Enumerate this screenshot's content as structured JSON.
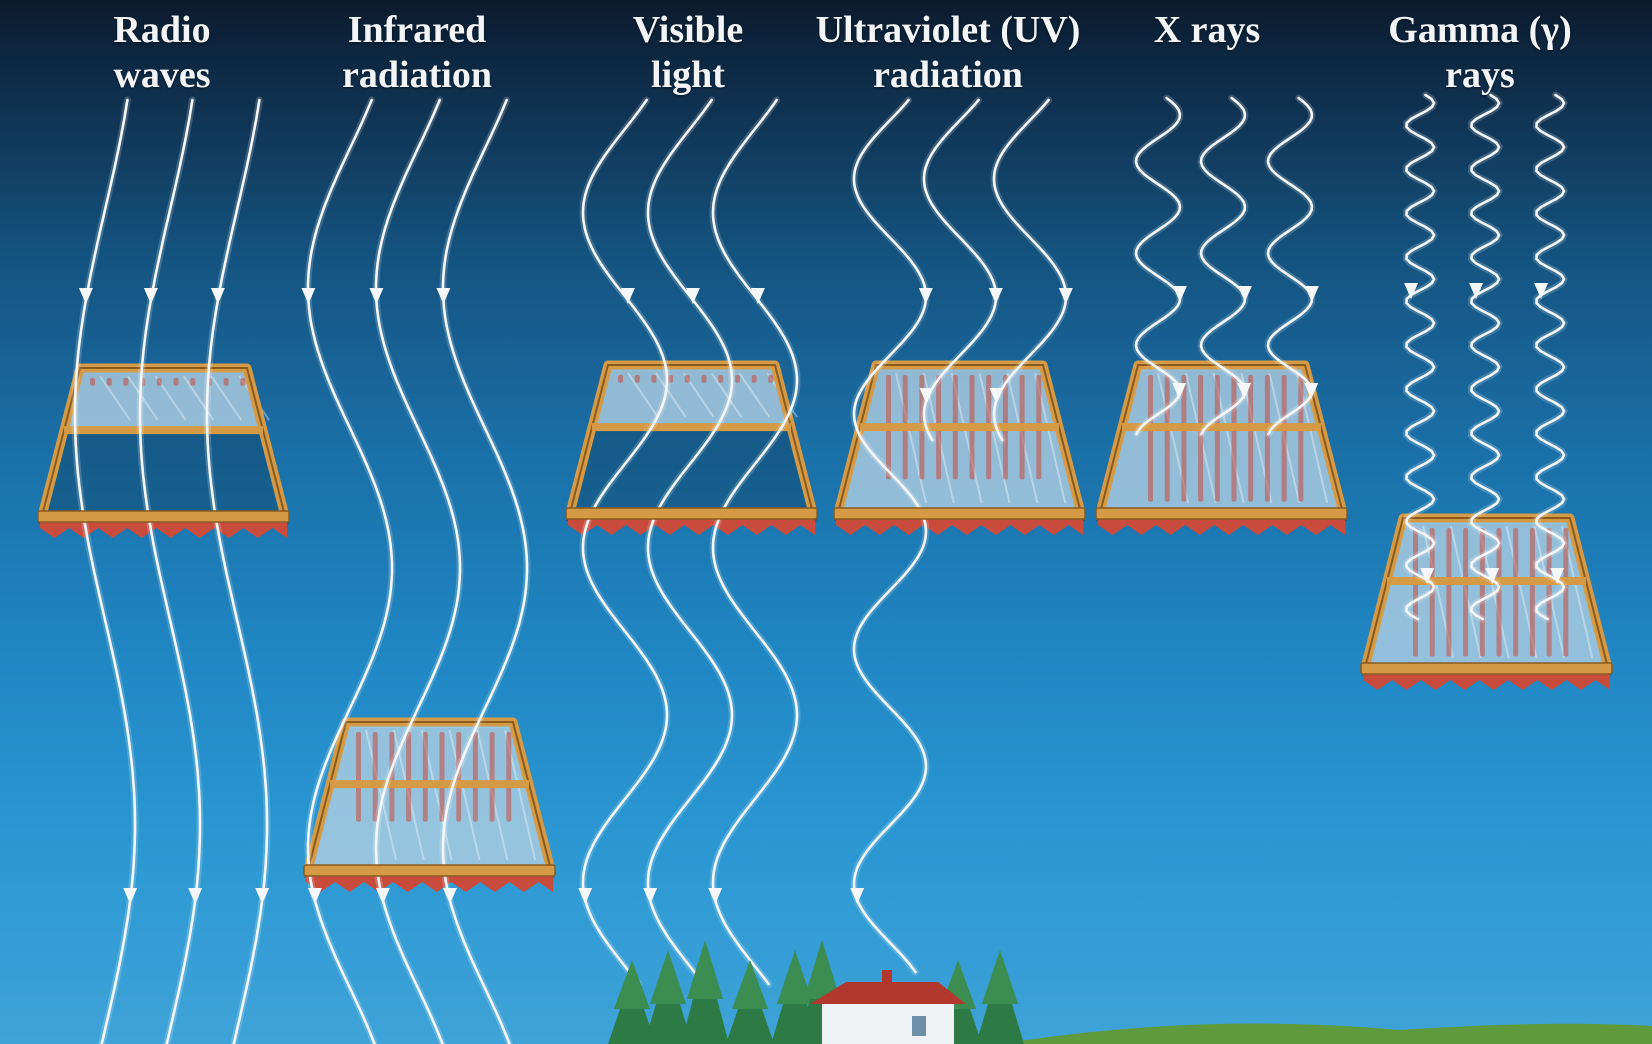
{
  "labels": [
    {
      "name": "radio-waves",
      "line1": "Radio",
      "line2": "waves"
    },
    {
      "name": "infrared",
      "line1": "Infrared",
      "line2": "radiation"
    },
    {
      "name": "visible-light",
      "line1": "Visible",
      "line2": "light"
    },
    {
      "name": "ultraviolet",
      "line1": "Ultraviolet (UV)",
      "line2": "radiation"
    },
    {
      "name": "x-rays",
      "line1": "X rays",
      "line2": ""
    },
    {
      "name": "gamma-rays",
      "line1": "Gamma (γ)",
      "line2": "rays"
    }
  ],
  "colors": {
    "wave": "#f4f6f8",
    "frame": "#d59a45",
    "frame_dark": "#8a5a1e",
    "glass": "#bcdcf0",
    "curtain": "#c94b3c",
    "tree": "#2e7a44",
    "house_wall": "#eef2f4",
    "house_roof": "#b2382d",
    "ground": "#5f9b3d"
  },
  "icons": [
    "window-icon",
    "curtain-icon",
    "tree-icon",
    "house-icon"
  ]
}
